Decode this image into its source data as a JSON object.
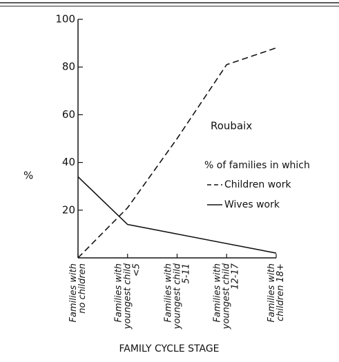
{
  "chart_data": {
    "type": "line",
    "title": "Roubaix",
    "y_label": "%",
    "x_label": "FAMILY CYCLE STAGE",
    "legend_title": "% of families in which",
    "categories": [
      "Families with\nno children",
      "Families with\nyoungest child\n<5",
      "Families with\nyoungest child\n5-11",
      "Families with\nyoungest child\n12-17",
      "Families with\nchildren 18+"
    ],
    "series": [
      {
        "name": "Children work",
        "color": "#111111",
        "dash": "dashed",
        "values": [
          0,
          21,
          50,
          81,
          88
        ]
      },
      {
        "name": "Wives work",
        "color": "#111111",
        "dash": "solid",
        "values": [
          34,
          14,
          10,
          6,
          2
        ]
      }
    ],
    "ylim": [
      0,
      100
    ],
    "yticks": [
      20,
      40,
      60,
      80,
      100
    ]
  }
}
